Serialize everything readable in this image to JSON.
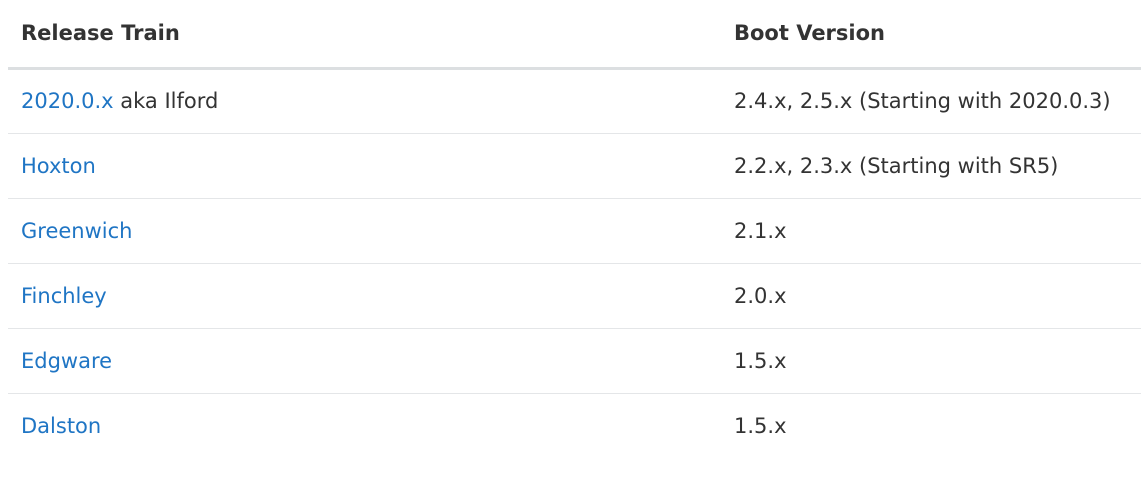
{
  "table": {
    "headers": {
      "release_train": "Release Train",
      "boot_version": "Boot Version"
    },
    "rows": [
      {
        "train": "2020.0.x",
        "suffix": " aka Ilford",
        "boot": "2.4.x, 2.5.x (Starting with 2020.0.3)"
      },
      {
        "train": "Hoxton",
        "suffix": "",
        "boot": "2.2.x, 2.3.x (Starting with SR5)"
      },
      {
        "train": "Greenwich",
        "suffix": "",
        "boot": "2.1.x"
      },
      {
        "train": "Finchley",
        "suffix": "",
        "boot": "2.0.x"
      },
      {
        "train": "Edgware",
        "suffix": "",
        "boot": "1.5.x"
      },
      {
        "train": "Dalston",
        "suffix": "",
        "boot": "1.5.x"
      }
    ]
  },
  "colors": {
    "link": "#1f75c4",
    "text": "#333333",
    "header_rule": "#dcdfe1",
    "row_rule": "#e4e6e8"
  }
}
